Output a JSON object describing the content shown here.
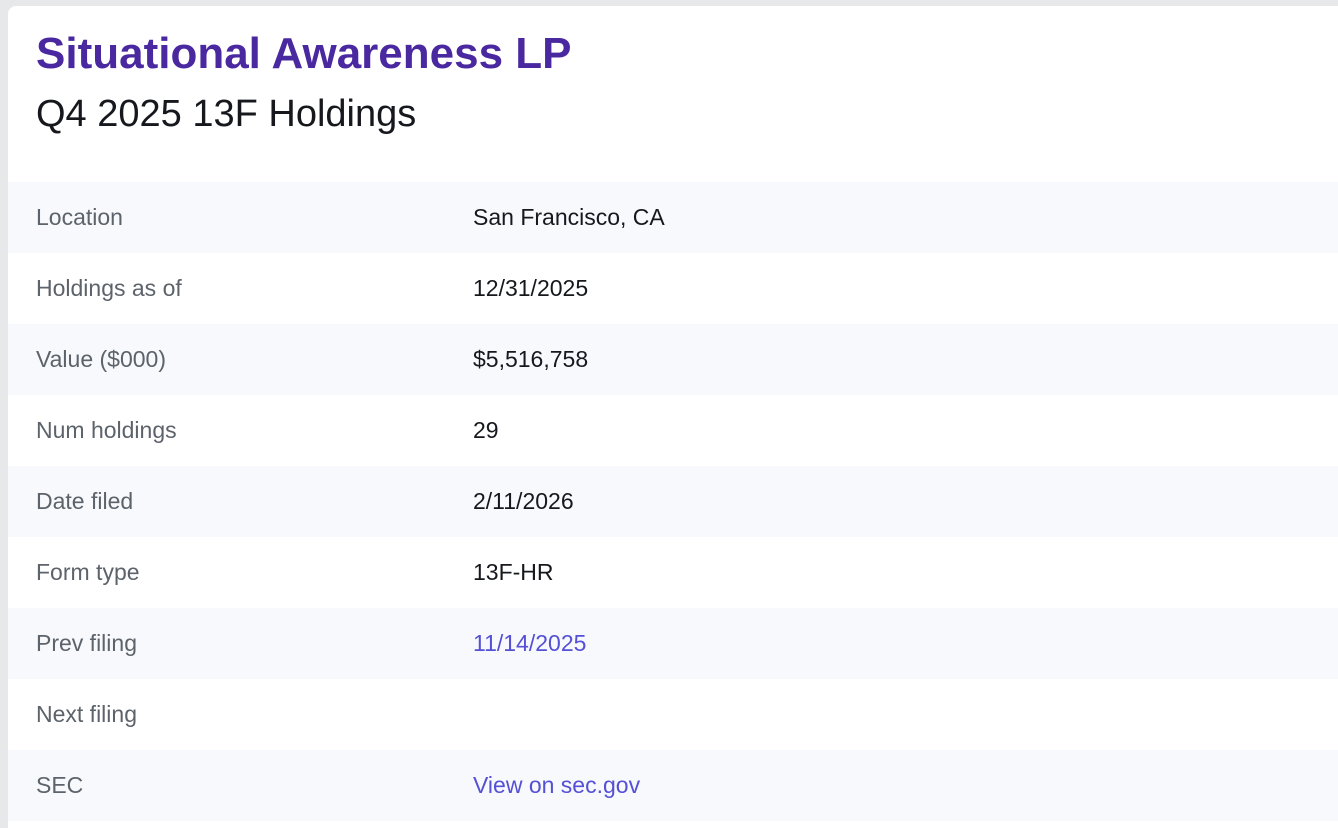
{
  "header": {
    "title": "Situational Awareness LP",
    "subtitle": "Q4 2025 13F Holdings"
  },
  "colors": {
    "title_accent": "#4a28a0",
    "link": "#5550d5",
    "label_gray": "#5d636b",
    "row_stripe": "#f7f9fc",
    "text_dark": "#16181d"
  },
  "details": {
    "rows": [
      {
        "label": "Location",
        "value": "San Francisco, CA",
        "type": "text"
      },
      {
        "label": "Holdings as of",
        "value": "12/31/2025",
        "type": "text"
      },
      {
        "label": "Value ($000)",
        "value": "$5,516,758",
        "type": "text"
      },
      {
        "label": "Num holdings",
        "value": "29",
        "type": "text"
      },
      {
        "label": "Date filed",
        "value": "2/11/2026",
        "type": "text"
      },
      {
        "label": "Form type",
        "value": "13F-HR",
        "type": "text"
      },
      {
        "label": "Prev filing",
        "value": "11/14/2025",
        "type": "link"
      },
      {
        "label": "Next filing",
        "value": "",
        "type": "text"
      },
      {
        "label": "SEC",
        "value": "View on sec.gov",
        "type": "link"
      }
    ]
  }
}
